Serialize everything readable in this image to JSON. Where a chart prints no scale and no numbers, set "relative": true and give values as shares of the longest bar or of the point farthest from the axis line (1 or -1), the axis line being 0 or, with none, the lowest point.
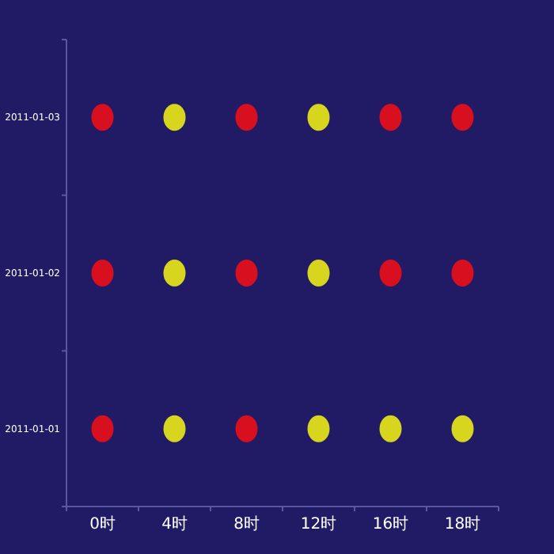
{
  "chart_data": {
    "type": "scatter",
    "categories": [
      "0时",
      "4时",
      "8时",
      "12时",
      "16时",
      "18时"
    ],
    "y_categories": [
      "2011-01-03",
      "2011-01-02",
      "2011-01-01"
    ],
    "relative": true,
    "marker": "circle",
    "series": [
      {
        "color": "#d80f1e",
        "x": [
          "0时",
          "8时",
          "16时",
          "18时",
          "0时",
          "8时",
          "16时",
          "18时",
          "0时",
          "8时"
        ],
        "values": [
          1,
          1,
          1,
          1,
          0.6,
          0.6,
          0.6,
          0.6,
          0.2,
          0.2
        ]
      },
      {
        "color": "#d7d51e",
        "x": [
          "4时",
          "12时",
          "4时",
          "12时",
          "4时",
          "12时",
          "16时",
          "18时"
        ],
        "values": [
          1,
          1,
          0.6,
          0.6,
          0.2,
          0.2,
          0.2,
          0.2
        ]
      }
    ]
  }
}
